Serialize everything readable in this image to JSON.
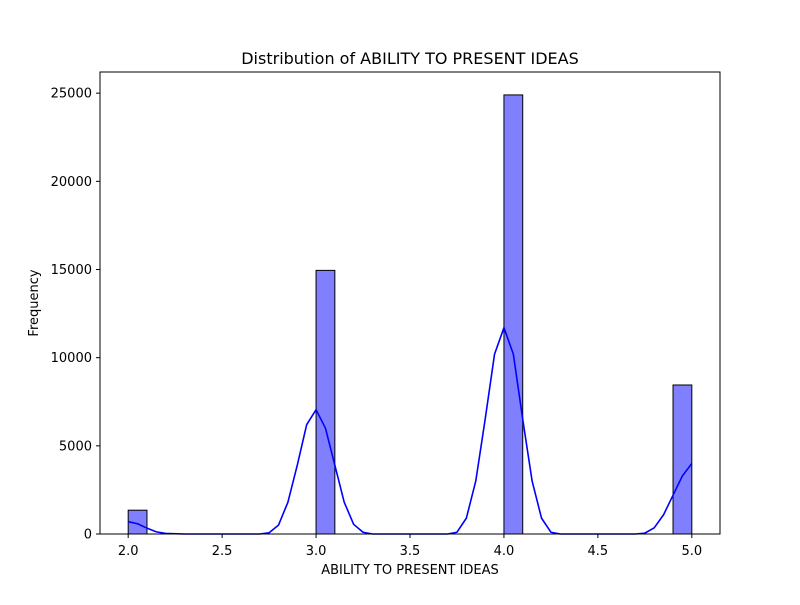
{
  "chart_data": {
    "type": "bar",
    "title": "Distribution of ABILITY TO PRESENT IDEAS",
    "xlabel": "ABILITY TO PRESENT IDEAS",
    "ylabel": "Frequency",
    "xlim": [
      1.85,
      5.15
    ],
    "ylim": [
      0,
      26200
    ],
    "xticks": [
      2.0,
      2.5,
      3.0,
      3.5,
      4.0,
      4.5,
      5.0
    ],
    "yticks": [
      0,
      5000,
      10000,
      15000,
      20000,
      25000
    ],
    "bin_width": 0.1,
    "bars": [
      {
        "x_start": 2.0,
        "x_end": 2.1,
        "value": 1350
      },
      {
        "x_start": 3.0,
        "x_end": 3.1,
        "value": 14950
      },
      {
        "x_start": 4.0,
        "x_end": 4.1,
        "value": 24900
      },
      {
        "x_start": 4.9,
        "x_end": 5.0,
        "value": 8450
      }
    ],
    "kde": {
      "points": [
        [
          2.0,
          700
        ],
        [
          2.05,
          580
        ],
        [
          2.1,
          330
        ],
        [
          2.15,
          120
        ],
        [
          2.2,
          30
        ],
        [
          2.3,
          0
        ],
        [
          2.7,
          0
        ],
        [
          2.75,
          70
        ],
        [
          2.8,
          500
        ],
        [
          2.85,
          1800
        ],
        [
          2.9,
          3900
        ],
        [
          2.95,
          6200
        ],
        [
          3.0,
          7050
        ],
        [
          3.05,
          6000
        ],
        [
          3.1,
          3900
        ],
        [
          3.15,
          1800
        ],
        [
          3.2,
          550
        ],
        [
          3.25,
          100
        ],
        [
          3.3,
          0
        ],
        [
          3.7,
          0
        ],
        [
          3.75,
          100
        ],
        [
          3.8,
          900
        ],
        [
          3.85,
          3000
        ],
        [
          3.9,
          6500
        ],
        [
          3.95,
          10200
        ],
        [
          4.0,
          11700
        ],
        [
          4.05,
          10200
        ],
        [
          4.1,
          6500
        ],
        [
          4.15,
          3000
        ],
        [
          4.2,
          900
        ],
        [
          4.25,
          100
        ],
        [
          4.3,
          0
        ],
        [
          4.7,
          0
        ],
        [
          4.75,
          50
        ],
        [
          4.8,
          350
        ],
        [
          4.85,
          1100
        ],
        [
          4.9,
          2200
        ],
        [
          4.95,
          3300
        ],
        [
          5.0,
          4000
        ]
      ]
    },
    "colors": {
      "bar_fill": "#8080ff",
      "bar_edge": "#000000",
      "kde_line": "#0000ff",
      "axes": "#000000"
    },
    "grid": false,
    "legend": "none"
  }
}
